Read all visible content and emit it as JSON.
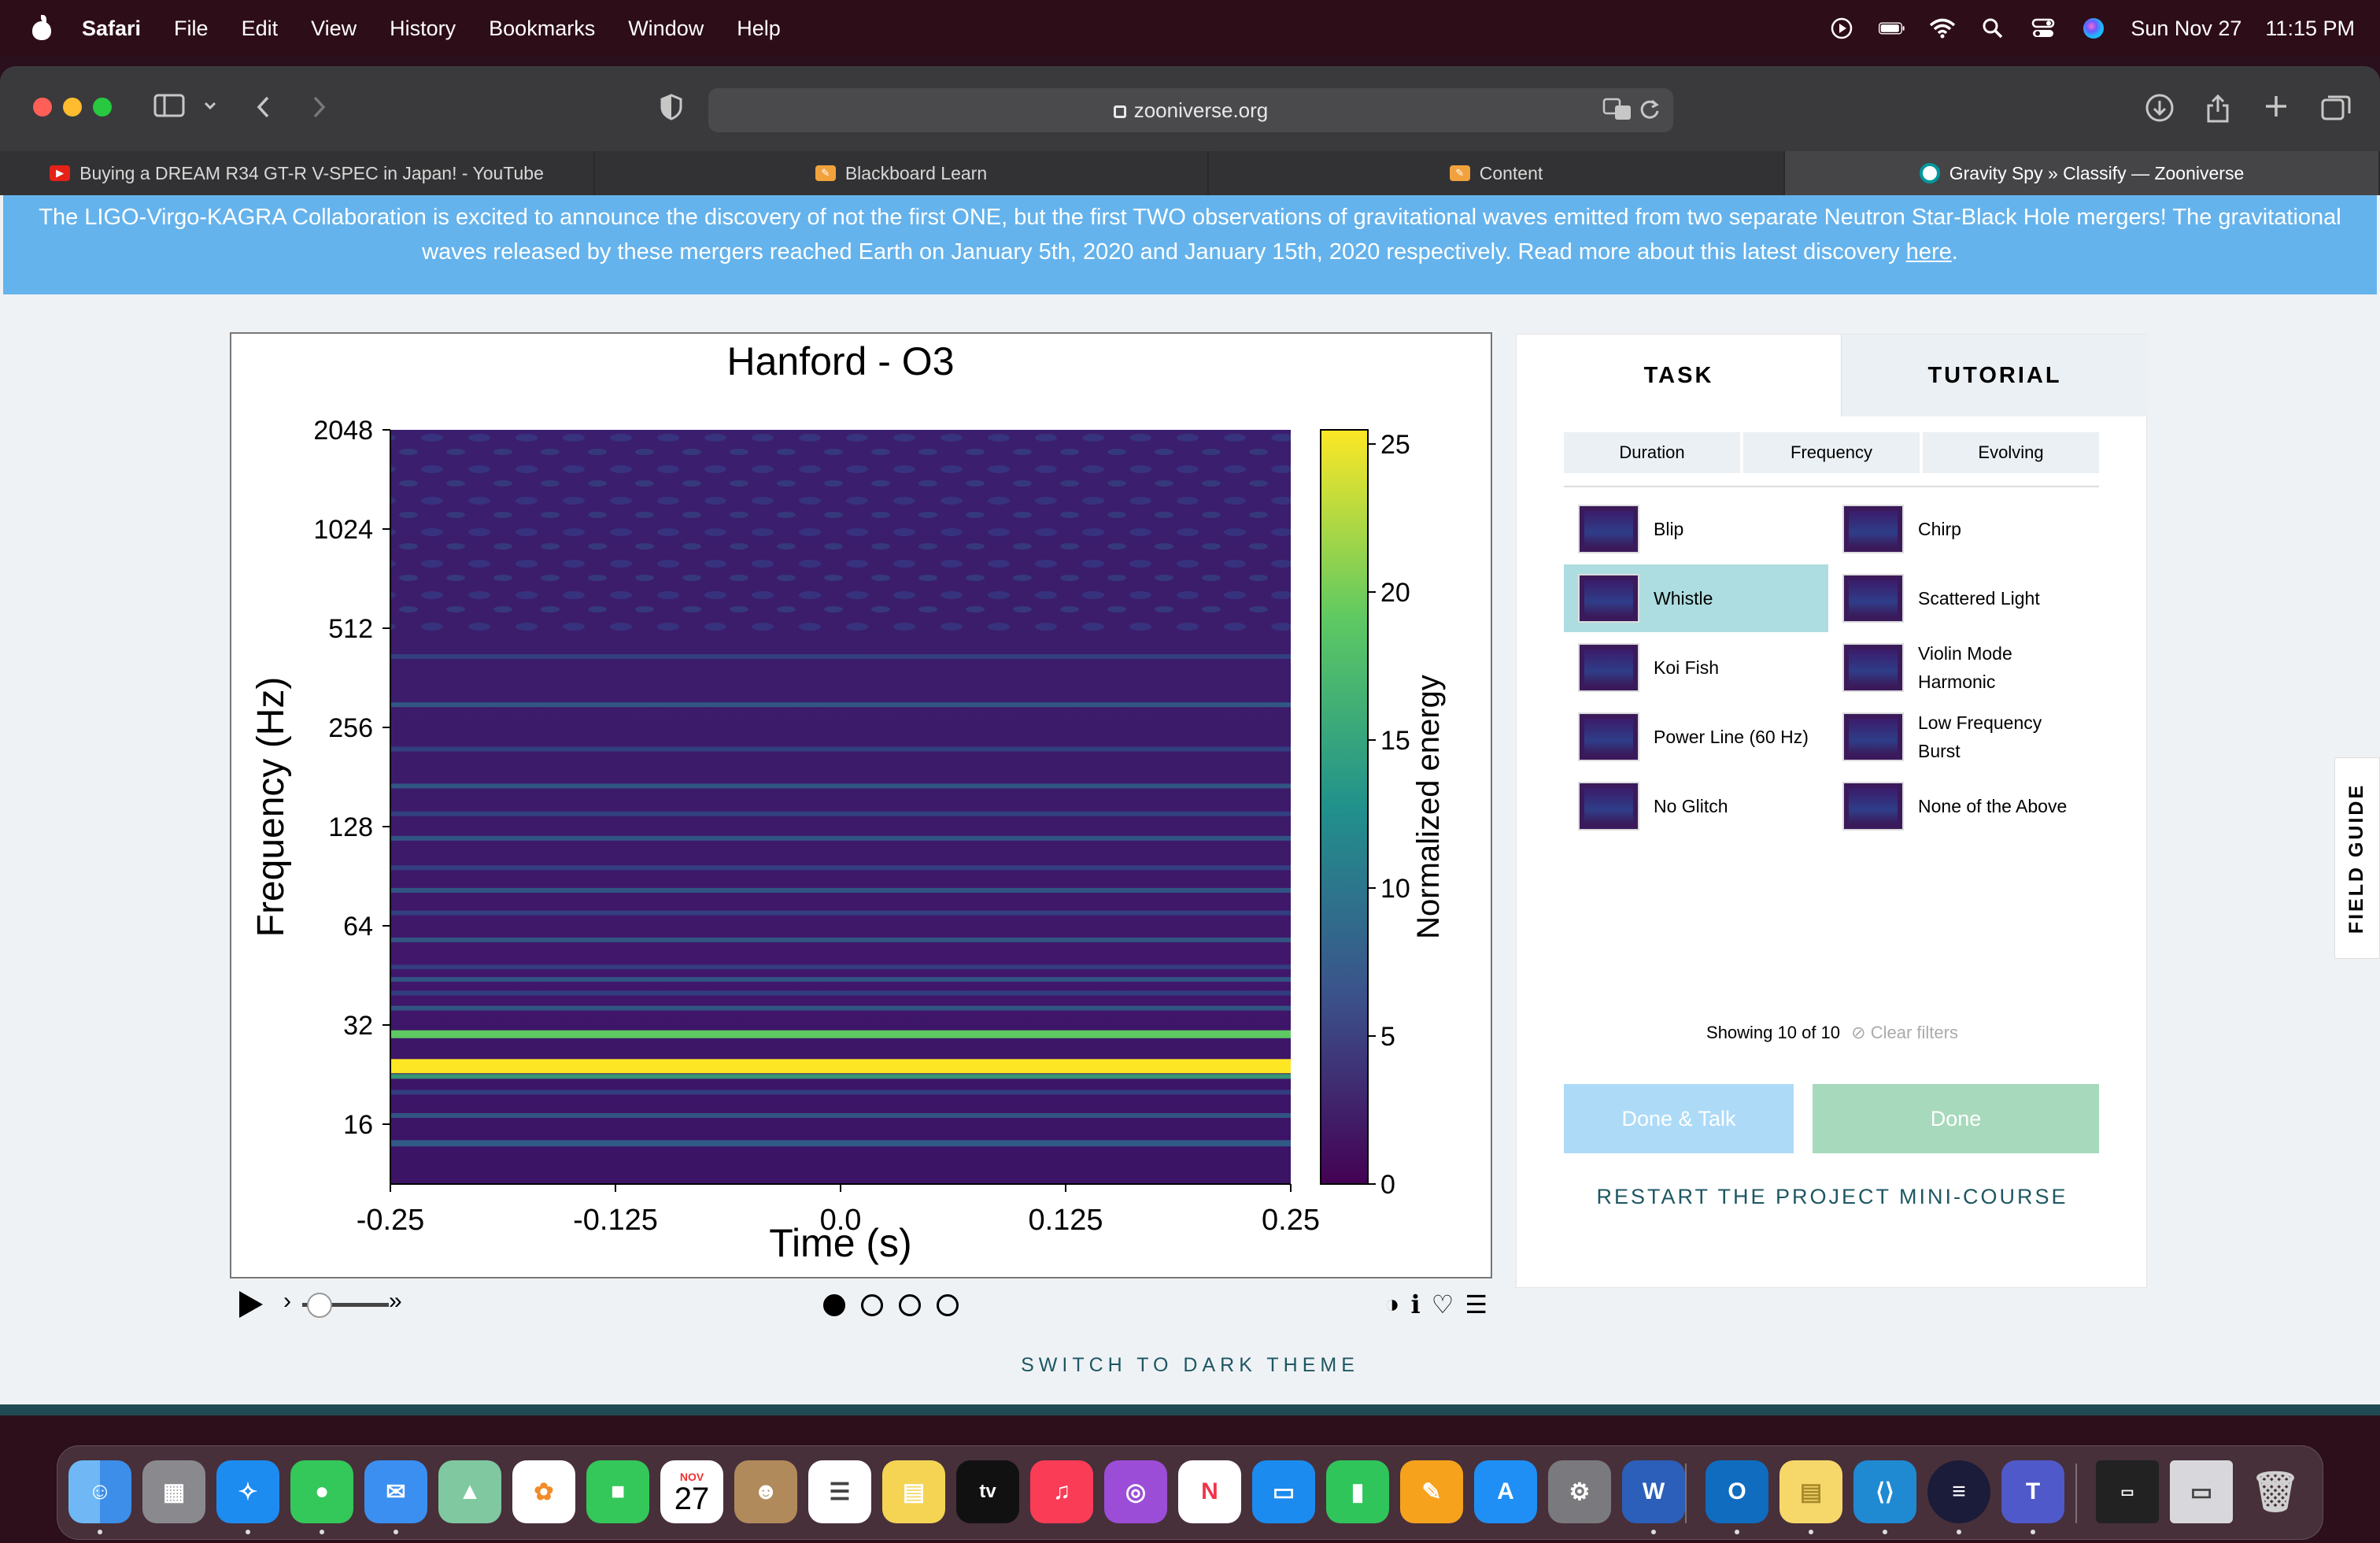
{
  "menubar": {
    "app": "Safari",
    "items": [
      "File",
      "Edit",
      "View",
      "History",
      "Bookmarks",
      "Window",
      "Help"
    ],
    "date": "Sun Nov 27",
    "time": "11:15 PM"
  },
  "browser": {
    "url": "zooniverse.org",
    "tabs": [
      {
        "label": "Buying a DREAM R34 GT-R V-SPEC in Japan! - YouTube",
        "icon": "youtube-icon"
      },
      {
        "label": "Blackboard Learn",
        "icon": "pencil-icon"
      },
      {
        "label": "Content",
        "icon": "pencil-icon"
      },
      {
        "label": "Gravity Spy » Classify — Zooniverse",
        "icon": "zooniverse-icon"
      }
    ]
  },
  "banner": {
    "text": "The LIGO-Virgo-KAGRA Collaboration is excited to announce the discovery of not the first ONE, but the first TWO observations of gravitational waves emitted from two separate Neutron Star-Black Hole mergers! The gravitational waves released by these mergers reached Earth on January 5th, 2020 and January 15th, 2020 respectively. Read more about this latest discovery ",
    "link": "here",
    "end": "."
  },
  "chart_data": {
    "type": "heatmap",
    "title": "Hanford - O3",
    "xlabel": "Time (s)",
    "ylabel": "Frequency (Hz)",
    "x_ticks": [
      "-0.25",
      "-0.125",
      "0.0",
      "0.125",
      "0.25"
    ],
    "y_ticks": [
      "2048",
      "1024",
      "512",
      "256",
      "128",
      "64",
      "32",
      "16"
    ],
    "y_scale": "log2",
    "colorbar_label": "Normalized energy",
    "colorbar_ticks": [
      "25",
      "20",
      "15",
      "10",
      "5",
      "0"
    ],
    "colorbar_range": [
      0,
      25
    ],
    "bright_bands_hz": [
      24,
      30
    ]
  },
  "subject_controls": {
    "frames": 4,
    "active_frame": 0
  },
  "task": {
    "tabs": [
      "TASK",
      "TUTORIAL"
    ],
    "filters": [
      "Duration",
      "Frequency",
      "Evolving"
    ],
    "choices": [
      {
        "label": "Blip",
        "selected": false
      },
      {
        "label": "Chirp",
        "selected": false
      },
      {
        "label": "Whistle",
        "selected": true
      },
      {
        "label": "Scattered Light",
        "selected": false
      },
      {
        "label": "Koi Fish",
        "selected": false
      },
      {
        "label": "Violin Mode Harmonic",
        "selected": false
      },
      {
        "label": "Power Line (60 Hz)",
        "selected": false
      },
      {
        "label": "Low Frequency Burst",
        "selected": false
      },
      {
        "label": "No Glitch",
        "selected": false
      },
      {
        "label": "None of the Above",
        "selected": false
      }
    ],
    "showing": "Showing 10 of 10",
    "clear_filters": "Clear filters",
    "done_talk": "Done & Talk",
    "done": "Done",
    "restart": "RESTART THE PROJECT MINI-COURSE"
  },
  "field_guide": "FIELD GUIDE",
  "dark_theme": "SWITCH TO DARK THEME",
  "dock": {
    "calendar_month": "NOV",
    "calendar_day": "27",
    "tv": "tv"
  }
}
